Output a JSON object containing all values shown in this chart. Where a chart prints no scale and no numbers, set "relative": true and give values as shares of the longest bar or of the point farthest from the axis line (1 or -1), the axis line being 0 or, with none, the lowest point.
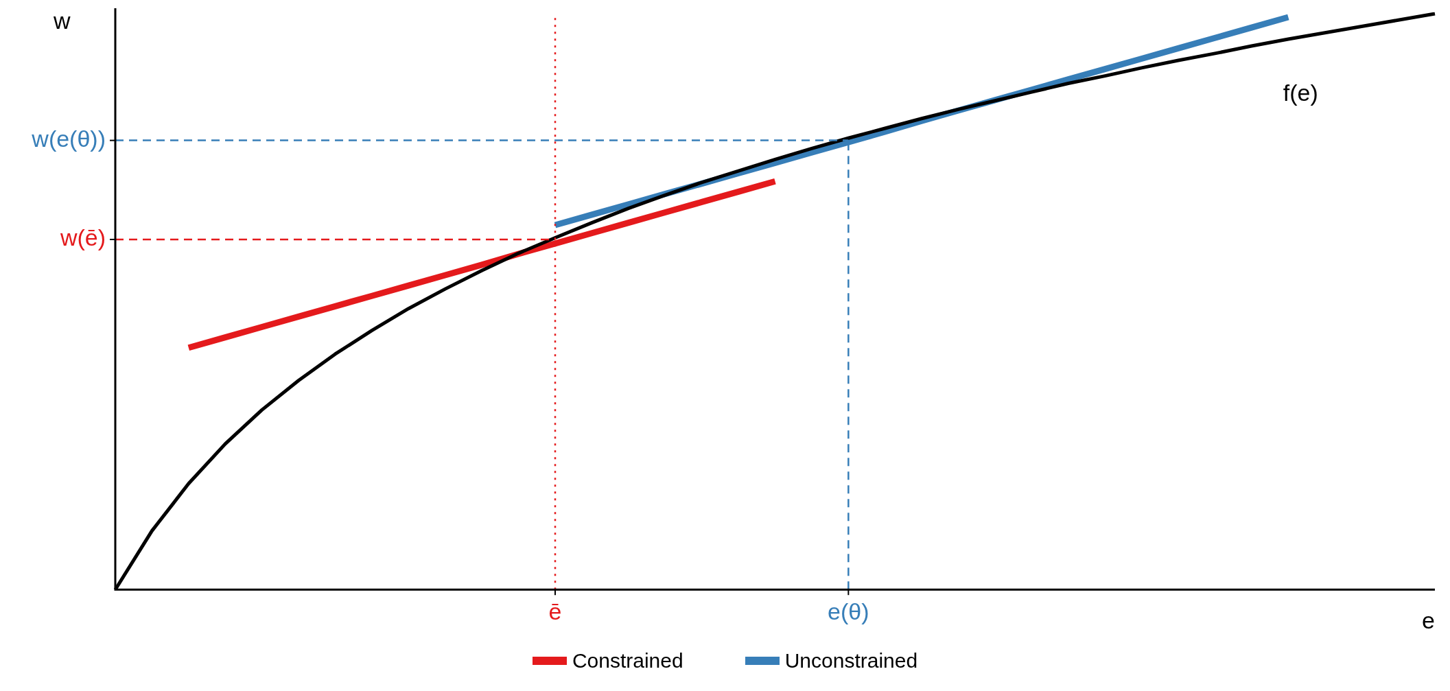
{
  "chart_data": {
    "type": "line",
    "relative": true,
    "xlabel": "e",
    "ylabel": "w",
    "legend": "bottom",
    "grid": false,
    "marker": "none",
    "line_style": "solid",
    "categories": [
      null,
      null,
      null,
      null,
      null,
      null,
      null,
      null,
      null,
      null,
      null,
      null,
      "ē",
      null,
      null,
      null,
      null,
      null,
      null,
      null,
      "e(θ)",
      null,
      null,
      null,
      null,
      null,
      null,
      null,
      null,
      null,
      null,
      null,
      null,
      null,
      null,
      null,
      null
    ],
    "annotations": [
      "f(e)"
    ],
    "ref_lines": [
      {
        "axis": "x",
        "value": "ē",
        "color": "#e41a1c",
        "line_style": "dotted"
      },
      {
        "axis": "x",
        "value": "e(θ)",
        "color": "#377eb8",
        "line_style": "dashed"
      },
      {
        "axis": "y",
        "value": 0.608,
        "label": "w(ē)",
        "color": "#e41a1c",
        "line_style": "dashed"
      },
      {
        "axis": "y",
        "value": 0.78,
        "label": "w(e(θ))",
        "color": "#377eb8",
        "line_style": "dashed"
      }
    ],
    "series": [
      {
        "color": "#000000",
        "values": [
          0,
          0.102,
          0.184,
          0.253,
          0.312,
          0.363,
          0.409,
          0.45,
          0.488,
          0.522,
          0.554,
          0.584,
          0.611,
          0.637,
          0.662,
          0.685,
          0.707,
          0.727,
          0.747,
          0.766,
          0.784,
          0.801,
          0.818,
          0.834,
          0.849,
          0.864,
          0.879,
          0.892,
          0.906,
          0.919,
          0.931,
          0.944,
          0.956,
          0.967,
          0.978,
          0.989,
          1
        ]
      },
      {
        "name": "Constrained",
        "color": "#e41a1c",
        "values": [
          null,
          null,
          0.42,
          0.438,
          0.456,
          0.474,
          0.492,
          0.51,
          0.528,
          0.546,
          0.564,
          0.583,
          0.601,
          0.619,
          0.637,
          0.655,
          0.673,
          0.691,
          0.709,
          null,
          null,
          null,
          null,
          null,
          null,
          null,
          null,
          null,
          null,
          null,
          null,
          null,
          null,
          null,
          null,
          null,
          null
        ]
      },
      {
        "name": "Unconstrained",
        "color": "#377eb8",
        "values": [
          null,
          null,
          null,
          null,
          null,
          null,
          null,
          null,
          null,
          null,
          null,
          null,
          0.633,
          0.651,
          0.669,
          0.687,
          0.705,
          0.723,
          0.741,
          0.759,
          0.777,
          0.795,
          0.814,
          0.832,
          0.85,
          0.868,
          0.886,
          0.904,
          0.922,
          0.94,
          0.958,
          0.976,
          0.994,
          null,
          null,
          null,
          null
        ]
      }
    ]
  }
}
